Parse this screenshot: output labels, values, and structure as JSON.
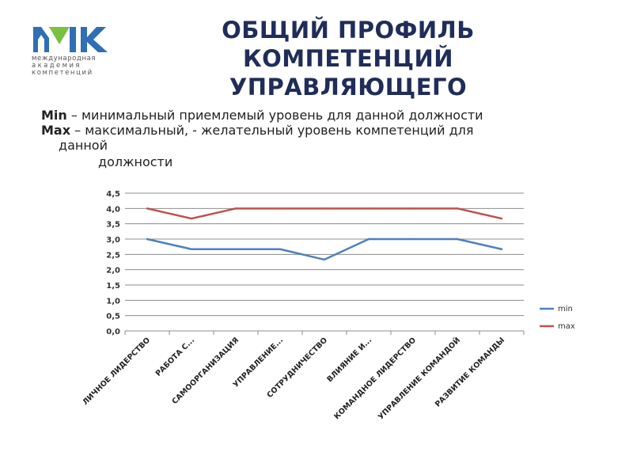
{
  "logo": {
    "lines": [
      "международная",
      "академия",
      "компетенций"
    ],
    "colors": {
      "m": "#2f6fb5",
      "triangle": "#7ac143",
      "k": "#2f6fb5"
    }
  },
  "title": {
    "lines": [
      "ОБЩИЙ ПРОФИЛЬ",
      "КОМПЕТЕНЦИЙ",
      "УПРАВЛЯЮЩЕГО"
    ]
  },
  "definitions": {
    "min_term": "Min",
    "min_text": " – минимальный приемлемый уровень для данной должности",
    "max_term": "Max",
    "max_text": " – максимальный, - желательный уровень компетенций для",
    "max_text_cont1": "данной",
    "max_text_cont2": "должности"
  },
  "chart_data": {
    "type": "line",
    "categories": [
      "ЛИЧНОЕ ЛИДЕРСТВО",
      "РАБОТА С...",
      "САМООРГАНИЗАЦИЯ",
      "УПРАВЛЕНИЕ...",
      "СОТРУДНИЧЕСТВО",
      "ВЛИЯНИЕ И...",
      "КОМАНДНОЕ ЛИДЕРСТВО",
      "УПРАВЛЕНИЕ КОМАНДОЙ",
      "РАЗВИТИЕ КОМАНДЫ"
    ],
    "series": [
      {
        "name": "min",
        "color": "#4f81bd",
        "values": [
          3.0,
          2.67,
          2.67,
          2.67,
          2.33,
          3.0,
          3.0,
          3.0,
          2.67
        ]
      },
      {
        "name": "max",
        "color": "#c0504d",
        "values": [
          4.0,
          3.67,
          4.0,
          4.0,
          4.0,
          4.0,
          4.0,
          4.0,
          3.67
        ]
      }
    ],
    "ylim": [
      0,
      4.5
    ],
    "yticks": [
      "0,0",
      "0,5",
      "1,0",
      "1,5",
      "2,0",
      "2,5",
      "3,0",
      "3,5",
      "4,0",
      "4,5"
    ],
    "grid": true,
    "legend": "right"
  }
}
